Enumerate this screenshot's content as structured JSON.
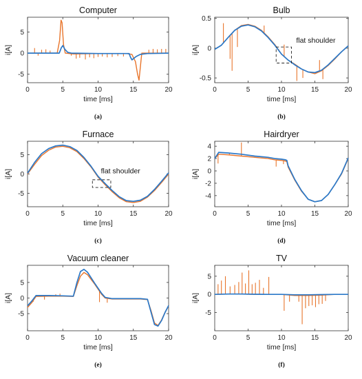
{
  "figure": {
    "series_colors": {
      "measured": "#e8742a",
      "model": "#2a78c8"
    },
    "box_color": "#222222"
  },
  "chart_data": [
    {
      "type": "line",
      "title": "Computer",
      "caption": "(a)",
      "xlabel": "time [ms]",
      "ylabel": "i[A]",
      "xlim": [
        0,
        20
      ],
      "ylim": [
        -7,
        8.5
      ],
      "xticks": [
        0,
        5,
        10,
        15,
        20
      ],
      "yticks": [
        -5,
        0,
        5
      ],
      "series": [
        {
          "color": "#e8742a",
          "x": [
            0,
            4.2,
            4.55,
            4.75,
            4.9,
            5.1,
            5.35,
            6.5,
            10,
            14,
            14.8,
            15.3,
            15.6,
            15.8,
            16.2,
            17,
            20
          ],
          "y": [
            0,
            0,
            3,
            7.8,
            7.2,
            2,
            0,
            -0.2,
            -0.1,
            -0.1,
            -0.3,
            -2,
            -5,
            -6.4,
            0,
            0,
            0
          ],
          "spikes": [
            [
              1,
              1.2
            ],
            [
              1.5,
              -0.6
            ],
            [
              2,
              0.8
            ],
            [
              2.6,
              0.9
            ],
            [
              3.2,
              0.6
            ],
            [
              6.2,
              -0.6
            ],
            [
              6.9,
              -1.3
            ],
            [
              7.4,
              -1.1
            ],
            [
              8.2,
              -1.5
            ],
            [
              8.8,
              -1
            ],
            [
              9.4,
              -1.2
            ],
            [
              10,
              -0.9
            ],
            [
              10.6,
              -0.8
            ],
            [
              11.3,
              -1
            ],
            [
              12,
              -0.9
            ],
            [
              12.8,
              -0.7
            ],
            [
              13.6,
              -0.8
            ],
            [
              17.2,
              0.8
            ],
            [
              17.8,
              1
            ],
            [
              18.4,
              0.9
            ],
            [
              19,
              1
            ],
            [
              19.6,
              1
            ]
          ]
        },
        {
          "color": "#2a78c8",
          "x": [
            0,
            4.5,
            4.8,
            5.0,
            5.3,
            5.7,
            6.2,
            10,
            14.4,
            14.6,
            14.8,
            15.4,
            16,
            17,
            20
          ],
          "y": [
            0,
            0,
            1.3,
            1.8,
            0.9,
            0.2,
            0,
            -0.1,
            -0.1,
            -1,
            -1.6,
            -0.8,
            -0.3,
            -0.1,
            0
          ]
        }
      ]
    },
    {
      "type": "line",
      "title": "Bulb",
      "caption": "(b)",
      "xlabel": "time [ms]",
      "ylabel": "i[A]",
      "xlim": [
        0,
        20
      ],
      "ylim": [
        -0.58,
        0.52
      ],
      "xticks": [
        0,
        5,
        10,
        15,
        20
      ],
      "yticks": [
        -0.5,
        0,
        0.5
      ],
      "annotation": {
        "text": "flat shoulder",
        "at": [
          12.2,
          0.09
        ]
      },
      "dashed_box": {
        "x": [
          9.2,
          11.5
        ],
        "y": [
          -0.25,
          0.02
        ]
      },
      "series": [
        {
          "color": "#e8742a",
          "x": [
            0,
            1,
            2,
            3,
            4,
            5,
            6,
            7,
            8,
            9,
            10,
            11,
            12,
            13,
            14,
            15,
            16,
            17,
            18,
            19,
            20
          ],
          "y": [
            -0.02,
            0.05,
            0.18,
            0.3,
            0.38,
            0.4,
            0.37,
            0.3,
            0.19,
            0.06,
            -0.1,
            -0.2,
            -0.27,
            -0.35,
            -0.4,
            -0.43,
            -0.38,
            -0.29,
            -0.18,
            -0.06,
            0.04
          ],
          "spikes": [
            [
              1.3,
              0.42
            ],
            [
              2.3,
              -0.18
            ],
            [
              2.6,
              -0.38
            ],
            [
              3.4,
              0.02
            ],
            [
              7.4,
              0.38
            ],
            [
              9.6,
              -0.02
            ],
            [
              10.4,
              0.06
            ],
            [
              12.3,
              -0.55
            ],
            [
              13.2,
              -0.5
            ],
            [
              15.7,
              -0.2
            ],
            [
              16.2,
              -0.52
            ]
          ]
        },
        {
          "color": "#2a78c8",
          "x": [
            0,
            1,
            2,
            3,
            4,
            5,
            6,
            7,
            8,
            9,
            10,
            11,
            12,
            13,
            14,
            15,
            16,
            17,
            18,
            19,
            20
          ],
          "y": [
            -0.02,
            0.05,
            0.18,
            0.3,
            0.37,
            0.39,
            0.36,
            0.29,
            0.18,
            0.05,
            -0.1,
            -0.2,
            -0.28,
            -0.35,
            -0.4,
            -0.41,
            -0.37,
            -0.28,
            -0.17,
            -0.06,
            0.04
          ]
        }
      ]
    },
    {
      "type": "line",
      "title": "Furnace",
      "caption": "(c)",
      "xlabel": "time [ms]",
      "ylabel": "i[A]",
      "xlim": [
        0,
        20
      ],
      "ylim": [
        -8.5,
        8.5
      ],
      "xticks": [
        0,
        5,
        10,
        15,
        20
      ],
      "yticks": [
        -5,
        0,
        5
      ],
      "annotation": {
        "text": "flat shoulder",
        "at": [
          10.4,
          0.2
        ]
      },
      "dashed_box": {
        "x": [
          9.2,
          11.8
        ],
        "y": [
          -3.5,
          -1.5
        ]
      },
      "series": [
        {
          "color": "#e8742a",
          "x": [
            0,
            1,
            2,
            3,
            4,
            5,
            6,
            7,
            8,
            9,
            10,
            11,
            12,
            13,
            14,
            15,
            16,
            17,
            18,
            19,
            20
          ],
          "y": [
            0,
            2.5,
            4.8,
            6.2,
            7.0,
            7.2,
            6.8,
            5.8,
            4.0,
            1.8,
            -0.8,
            -2.8,
            -4.6,
            -6.2,
            -7.2,
            -7.4,
            -7.1,
            -6.0,
            -4.3,
            -2.2,
            0.0
          ]
        },
        {
          "color": "#2a78c8",
          "x": [
            0,
            1,
            2,
            3,
            4,
            5,
            6,
            7,
            8,
            9,
            10,
            11,
            12,
            13,
            14,
            15,
            16,
            17,
            18,
            19,
            20
          ],
          "y": [
            0.2,
            3.0,
            5.3,
            6.6,
            7.3,
            7.5,
            7.1,
            6.1,
            4.3,
            2.0,
            -0.6,
            -2.5,
            -4.3,
            -5.9,
            -6.9,
            -7.1,
            -6.8,
            -5.8,
            -4.0,
            -1.9,
            0.3
          ]
        }
      ]
    },
    {
      "type": "line",
      "title": "Hairdryer",
      "caption": "(d)",
      "xlabel": "time [ms]",
      "ylabel": "i[A]",
      "xlim": [
        0,
        20
      ],
      "ylim": [
        -5.8,
        4.8
      ],
      "xticks": [
        0,
        5,
        10,
        15,
        20
      ],
      "yticks": [
        -4,
        -2,
        0,
        2,
        4
      ],
      "series": [
        {
          "color": "#e8742a",
          "x": [
            0,
            0.6,
            2,
            4,
            6,
            8,
            9,
            10,
            10.6,
            10.8,
            11,
            12,
            13,
            14,
            15,
            16,
            17,
            18,
            19,
            20
          ],
          "y": [
            2.0,
            2.7,
            2.6,
            2.4,
            2.2,
            2.0,
            1.8,
            1.7,
            1.6,
            1.5,
            0.6,
            -1.5,
            -3.3,
            -4.6,
            -5.0,
            -4.8,
            -3.8,
            -2.2,
            -0.5,
            2.0
          ],
          "spikes": [
            [
              0.5,
              1.2
            ],
            [
              2.2,
              2.9
            ],
            [
              4.0,
              4.6
            ],
            [
              9.2,
              0.7
            ],
            [
              10.3,
              1.1
            ]
          ]
        },
        {
          "color": "#2a78c8",
          "x": [
            0,
            0.6,
            2,
            4,
            6,
            8,
            9,
            10,
            10.6,
            10.8,
            11,
            12,
            13,
            14,
            15,
            16,
            17,
            18,
            19,
            20
          ],
          "y": [
            2.0,
            3.0,
            2.9,
            2.7,
            2.4,
            2.2,
            2.0,
            1.9,
            1.8,
            1.7,
            0.8,
            -1.4,
            -3.2,
            -4.6,
            -5.0,
            -4.8,
            -3.8,
            -2.2,
            -0.4,
            2.1
          ]
        }
      ]
    },
    {
      "type": "line",
      "title": "Vacuum cleaner",
      "caption": "(e)",
      "xlabel": "time [ms]",
      "ylabel": "i[A]",
      "xlim": [
        0,
        20
      ],
      "ylim": [
        -10.5,
        10.5
      ],
      "xticks": [
        0,
        5,
        10,
        15,
        20
      ],
      "yticks": [
        -5,
        0,
        5
      ],
      "series": [
        {
          "color": "#e8742a",
          "x": [
            0,
            0.6,
            1.2,
            3,
            5,
            6.5,
            7.0,
            7.5,
            8.0,
            8.5,
            9.5,
            10.5,
            11.0,
            12,
            14,
            16,
            17,
            17.5,
            18,
            18.5,
            19,
            19.5,
            20
          ],
          "y": [
            -3,
            -1.5,
            0.5,
            0.6,
            0.6,
            0.5,
            4,
            7,
            8.2,
            7.5,
            4.5,
            1.2,
            0.0,
            -0.3,
            -0.3,
            -0.3,
            -0.5,
            -4,
            -8,
            -8.8,
            -7,
            -4.5,
            -2.6
          ],
          "spikes": [
            [
              0.8,
              -1.2
            ],
            [
              2.4,
              -0.5
            ],
            [
              4.0,
              1.2
            ],
            [
              4.6,
              1.4
            ],
            [
              10.2,
              -1.3
            ],
            [
              11.3,
              -1.5
            ]
          ]
        },
        {
          "color": "#2a78c8",
          "x": [
            0,
            0.6,
            1.2,
            3,
            5,
            6.5,
            7.0,
            7.5,
            8.0,
            8.5,
            9.5,
            10.5,
            11.0,
            12,
            14,
            16,
            17,
            17.5,
            18,
            18.5,
            19,
            19.5,
            20
          ],
          "y": [
            -2.5,
            -1.0,
            0.8,
            0.8,
            0.7,
            0.6,
            5,
            8.5,
            9.2,
            8.3,
            4.8,
            1.5,
            0.2,
            -0.2,
            -0.2,
            -0.2,
            -0.4,
            -4.5,
            -8.5,
            -9.0,
            -7.2,
            -4.6,
            -2.4
          ]
        }
      ]
    },
    {
      "type": "line",
      "title": "TV",
      "caption": "(f)",
      "xlabel": "time [ms]",
      "ylabel": "i[A]",
      "xlim": [
        0,
        20
      ],
      "ylim": [
        -10,
        8
      ],
      "xticks": [
        0,
        5,
        10,
        15,
        20
      ],
      "yticks": [
        -5,
        0,
        5
      ],
      "series": [
        {
          "color": "#e8742a",
          "x": [
            0,
            2,
            4,
            6,
            8,
            10,
            12,
            14,
            16,
            18,
            20
          ],
          "y": [
            0,
            0.1,
            0.1,
            0,
            0,
            0,
            -0.3,
            -0.3,
            -0.2,
            0,
            0
          ],
          "spikes": [
            [
              0.5,
              2.8
            ],
            [
              1.0,
              3.8
            ],
            [
              1.6,
              5.0
            ],
            [
              2.3,
              2.2
            ],
            [
              3.0,
              2.6
            ],
            [
              3.6,
              3.4
            ],
            [
              4.1,
              6.0
            ],
            [
              4.6,
              3.0
            ],
            [
              5.1,
              6.6
            ],
            [
              5.6,
              2.8
            ],
            [
              6.1,
              3.2
            ],
            [
              6.7,
              4.0
            ],
            [
              7.3,
              1.8
            ],
            [
              8.1,
              4.8
            ],
            [
              10.4,
              -4.5
            ],
            [
              11.2,
              -2.0
            ],
            [
              12.6,
              -2.0
            ],
            [
              13.1,
              -8.2
            ],
            [
              13.6,
              -3.8
            ],
            [
              14.1,
              -3.2
            ],
            [
              14.6,
              -3.0
            ],
            [
              15.1,
              -3.5
            ],
            [
              15.6,
              -2.7
            ],
            [
              16.1,
              -2.6
            ],
            [
              16.6,
              -1.8
            ]
          ]
        },
        {
          "color": "#2a78c8",
          "x": [
            0,
            2,
            4,
            6,
            8,
            10,
            12,
            14,
            16,
            18,
            20
          ],
          "y": [
            0,
            0.1,
            0.1,
            0.05,
            0,
            0,
            -0.1,
            -0.1,
            -0.05,
            0,
            0
          ]
        }
      ]
    }
  ]
}
